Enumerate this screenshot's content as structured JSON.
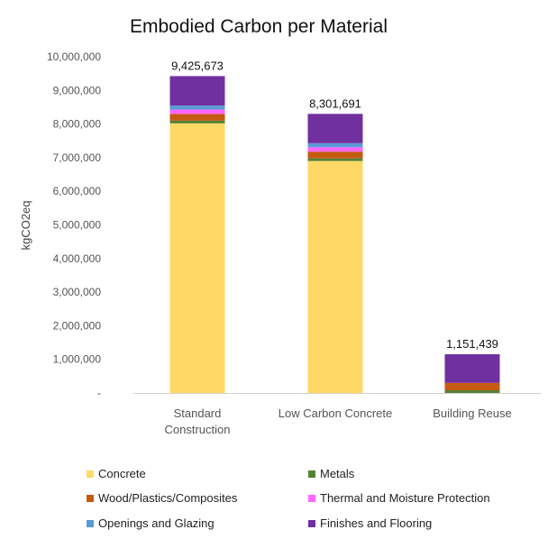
{
  "chart_data": {
    "type": "bar",
    "stacked": true,
    "title": "Embodied Carbon per Material",
    "ylabel": "kgCO2eq",
    "xlabel": "",
    "ylim": [
      0,
      10000000
    ],
    "yticks": [
      0,
      1000000,
      2000000,
      3000000,
      4000000,
      5000000,
      6000000,
      7000000,
      8000000,
      9000000,
      10000000
    ],
    "ytick_labels": [
      "-",
      "1,000,000",
      "2,000,000",
      "3,000,000",
      "4,000,000",
      "5,000,000",
      "6,000,000",
      "7,000,000",
      "8,000,000",
      "9,000,000",
      "10,000,000"
    ],
    "categories": [
      {
        "lines": [
          "Standard",
          "Construction"
        ]
      },
      {
        "lines": [
          "Low Carbon Concrete"
        ]
      },
      {
        "lines": [
          "Building Reuse"
        ]
      }
    ],
    "totals": [
      9425673,
      8301691,
      1151439
    ],
    "total_labels": [
      "9,425,673",
      "8,301,691",
      "1,151,439"
    ],
    "series": [
      {
        "name": "Concrete",
        "color": "#FFD966",
        "values": [
          8020000,
          6900000,
          0
        ]
      },
      {
        "name": "Metals",
        "color": "#548235",
        "values": [
          80000,
          80000,
          80000
        ]
      },
      {
        "name": "Wood/Plastics/Composites",
        "color": "#C55A11",
        "values": [
          200000,
          200000,
          220000
        ]
      },
      {
        "name": "Thermal and Moisture Protection",
        "color": "#FF66FF",
        "values": [
          130000,
          130000,
          0
        ]
      },
      {
        "name": "Openings and Glazing",
        "color": "#5B9BD5",
        "values": [
          120000,
          120000,
          0
        ]
      },
      {
        "name": "Finishes and Flooring",
        "color": "#7030A0",
        "values": [
          875673,
          871691,
          851439
        ]
      }
    ],
    "legend": {
      "placement": "bottom",
      "columns": [
        [
          "Concrete",
          "Wood/Plastics/Composites",
          "Openings and Glazing"
        ],
        [
          "Metals",
          "Thermal and Moisture Protection",
          "Finishes and Flooring"
        ]
      ]
    },
    "grid": false
  }
}
